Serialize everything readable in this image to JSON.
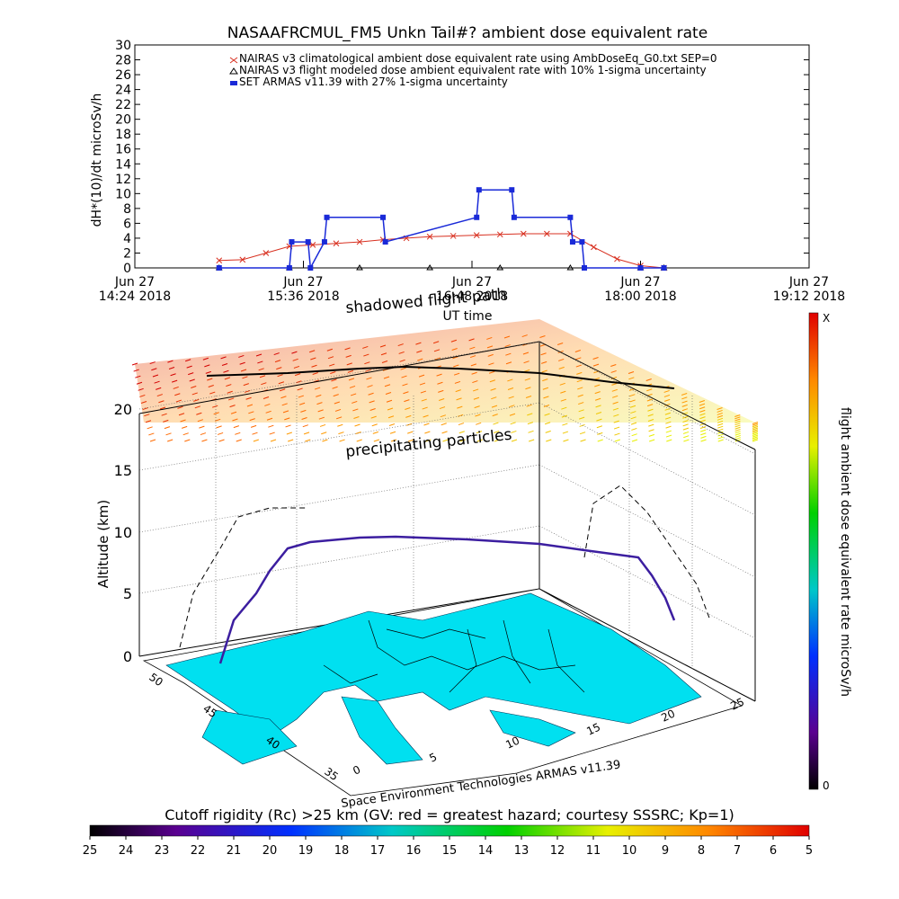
{
  "title": "NASAAFRCMUL_FM5 Unkn Tail#? ambient dose equivalent rate",
  "chart_data": [
    {
      "type": "line",
      "ylabel": "dH*(10)/dt microSv/h",
      "xlabel": "UT time",
      "ylim": [
        0,
        30
      ],
      "yticks": [
        "0",
        "2",
        "4",
        "6",
        "8",
        "10",
        "12",
        "14",
        "16",
        "18",
        "20",
        "22",
        "24",
        "26",
        "28",
        "30"
      ],
      "xlim": [
        "2018-06-27 14:24",
        "2018-06-27 19:12"
      ],
      "xticks": [
        {
          "t": "2018-06-27 14:24",
          "line1": "Jun 27",
          "line2": "14:24 2018"
        },
        {
          "t": "2018-06-27 15:36",
          "line1": "Jun 27",
          "line2": "15:36 2018"
        },
        {
          "t": "2018-06-27 16:48",
          "line1": "Jun 27",
          "line2": "16:48 2018"
        },
        {
          "t": "2018-06-27 18:00",
          "line1": "Jun 27",
          "line2": "18:00 2018"
        },
        {
          "t": "2018-06-27 19:12",
          "line1": "Jun 27",
          "line2": "19:12 2018"
        }
      ],
      "legend_position": "top",
      "series": [
        {
          "name": "NAIRAS v3 climatological ambient dose equivalent rate using AmbDoseEq_G0.txt SEP=0",
          "color": "#d83020",
          "marker": "x",
          "x": [
            "2018-06-27 15:00",
            "2018-06-27 15:10",
            "2018-06-27 15:20",
            "2018-06-27 15:30",
            "2018-06-27 15:40",
            "2018-06-27 15:50",
            "2018-06-27 16:00",
            "2018-06-27 16:10",
            "2018-06-27 16:20",
            "2018-06-27 16:30",
            "2018-06-27 16:40",
            "2018-06-27 16:50",
            "2018-06-27 17:00",
            "2018-06-27 17:10",
            "2018-06-27 17:20",
            "2018-06-27 17:30",
            "2018-06-27 17:40",
            "2018-06-27 17:50",
            "2018-06-27 18:00",
            "2018-06-27 18:10"
          ],
          "values": [
            1.0,
            1.1,
            2.0,
            2.9,
            3.1,
            3.3,
            3.5,
            3.8,
            4.0,
            4.2,
            4.3,
            4.4,
            4.5,
            4.6,
            4.6,
            4.6,
            2.8,
            1.2,
            0.3,
            0.0
          ]
        },
        {
          "name": "NAIRAS v3 flight modeled dose ambient equivalent rate with 10% 1-sigma uncertainty",
          "color": "#000000",
          "marker": "triangle",
          "x": [
            "2018-06-27 15:00",
            "2018-06-27 15:30",
            "2018-06-27 16:00",
            "2018-06-27 16:30",
            "2018-06-27 17:00",
            "2018-06-27 17:30",
            "2018-06-27 18:00",
            "2018-06-27 18:10"
          ],
          "values": [
            0,
            0,
            0,
            0,
            0,
            0,
            0,
            0
          ]
        },
        {
          "name": "SET ARMAS v11.39 with 27% 1-sigma uncertainty",
          "color": "#1a2ad8",
          "marker": "square",
          "x": [
            "2018-06-27 15:00",
            "2018-06-27 15:30",
            "2018-06-27 15:31",
            "2018-06-27 15:38",
            "2018-06-27 15:39",
            "2018-06-27 15:45",
            "2018-06-27 15:46",
            "2018-06-27 16:10",
            "2018-06-27 16:11",
            "2018-06-27 16:50",
            "2018-06-27 16:51",
            "2018-06-27 17:05",
            "2018-06-27 17:06",
            "2018-06-27 17:30",
            "2018-06-27 17:31",
            "2018-06-27 17:35",
            "2018-06-27 17:36",
            "2018-06-27 18:00",
            "2018-06-27 18:10"
          ],
          "values": [
            0.0,
            0.0,
            3.5,
            3.5,
            0.0,
            3.5,
            6.8,
            6.8,
            3.5,
            6.8,
            10.5,
            10.5,
            6.8,
            6.8,
            3.5,
            3.5,
            0.0,
            0.0,
            0.0
          ]
        }
      ]
    },
    {
      "type": "scatter",
      "ylabel": "Altitude (km)",
      "zticks": [
        "0",
        "5",
        "10",
        "15",
        "20"
      ],
      "lat_ticks": [
        "35",
        "40",
        "45",
        "50"
      ],
      "lon_ticks": [
        "0",
        "5",
        "10",
        "15",
        "20",
        "25"
      ],
      "annotations": [
        "shadowed flight path",
        "precipitating particles"
      ],
      "credit": "Space Environment Technologies ARMAS v11.39",
      "vertical_colorbar": {
        "label": "flight ambient dose equivalent rate microSv/h",
        "top": "X",
        "bottom": "0"
      },
      "horizontal_colorbar": {
        "label": "Cutoff rigidity (Rc) >25 km (GV: red = greatest hazard; courtesy SSSRC; Kp=1)",
        "ticks": [
          "25",
          "24",
          "23",
          "22",
          "21",
          "20",
          "19",
          "18",
          "17",
          "16",
          "15",
          "14",
          "13",
          "12",
          "11",
          "10",
          "9",
          "8",
          "7",
          "6",
          "5"
        ]
      },
      "flight_path_altitude_km": [
        0.5,
        3,
        6,
        8.3,
        9.2,
        9.7,
        9.8,
        9.6,
        9.2,
        8.6,
        4.5,
        1.5
      ]
    }
  ]
}
